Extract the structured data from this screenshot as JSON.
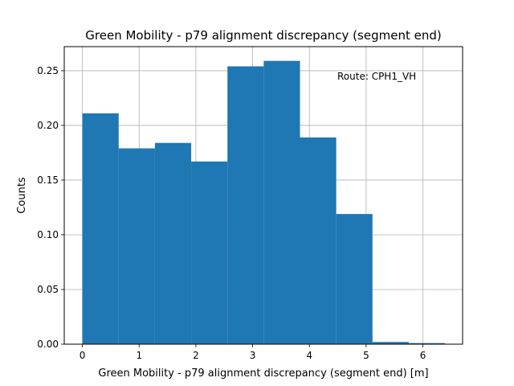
{
  "chart_data": {
    "type": "bar",
    "title": "Green Mobility - p79 alignment discrepancy (segment end)",
    "xlabel": "Green Mobility - p79 alignment discrepancy (segment end) [m]",
    "ylabel": "Counts",
    "annotation": "Route: CPH1_VH",
    "xlim": [
      -0.32,
      6.7
    ],
    "ylim": [
      0,
      0.272
    ],
    "xticks": [
      0,
      1,
      2,
      3,
      4,
      5,
      6
    ],
    "xtick_labels": [
      "0",
      "1",
      "2",
      "3",
      "4",
      "5",
      "6"
    ],
    "yticks": [
      0.0,
      0.05,
      0.1,
      0.15,
      0.2,
      0.25
    ],
    "ytick_labels": [
      "0.00",
      "0.05",
      "0.10",
      "0.15",
      "0.20",
      "0.25"
    ],
    "grid": true,
    "bar_color": "#1f77b4",
    "bins": [
      {
        "x0": 0.0,
        "x1": 0.639,
        "value": 0.211
      },
      {
        "x0": 0.639,
        "x1": 1.278,
        "value": 0.179
      },
      {
        "x0": 1.278,
        "x1": 1.917,
        "value": 0.184
      },
      {
        "x0": 1.917,
        "x1": 2.556,
        "value": 0.167
      },
      {
        "x0": 2.556,
        "x1": 3.195,
        "value": 0.254
      },
      {
        "x0": 3.195,
        "x1": 3.834,
        "value": 0.259
      },
      {
        "x0": 3.834,
        "x1": 4.473,
        "value": 0.189
      },
      {
        "x0": 4.473,
        "x1": 5.112,
        "value": 0.119
      },
      {
        "x0": 5.112,
        "x1": 5.751,
        "value": 0.002
      },
      {
        "x0": 5.751,
        "x1": 6.39,
        "value": 0.001
      }
    ]
  }
}
